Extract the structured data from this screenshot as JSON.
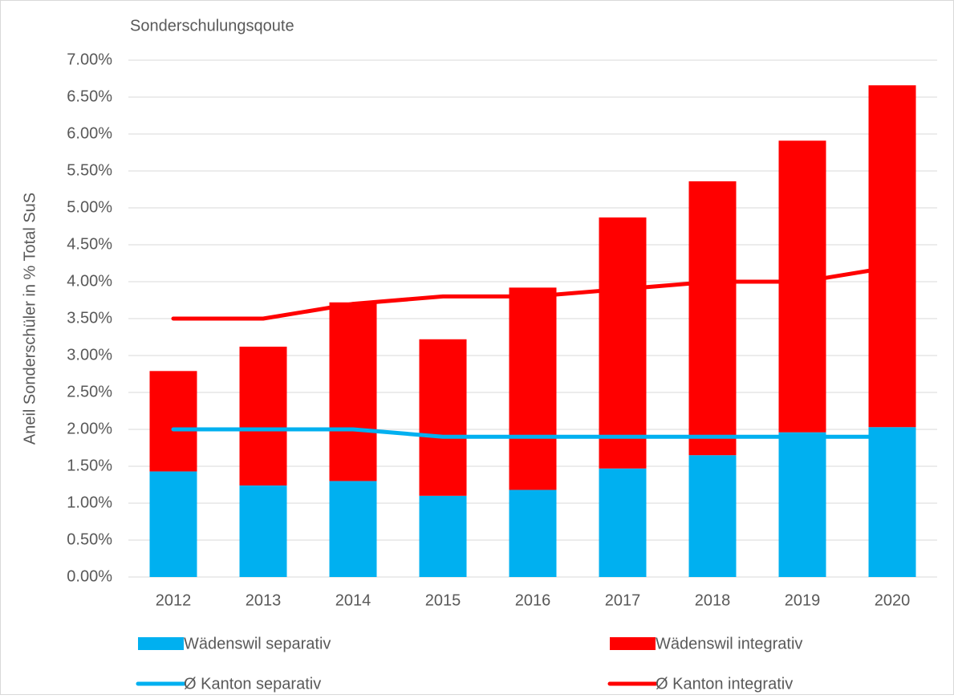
{
  "chart_data": {
    "type": "stacked-bar-line",
    "title": "Sonderschulungsqoute",
    "y_axis_label": "Aneil Sonderschüler in % Total SuS",
    "categories": [
      "2012",
      "2013",
      "2014",
      "2015",
      "2016",
      "2017",
      "2018",
      "2019",
      "2020"
    ],
    "series": [
      {
        "name": "Wädenswil separativ",
        "type": "bar",
        "color": "#00b0f0",
        "values": [
          1.43,
          1.24,
          1.3,
          1.1,
          1.18,
          1.47,
          1.65,
          1.96,
          2.03
        ]
      },
      {
        "name": "Wädenswil integrativ",
        "type": "bar",
        "color": "#ff0000",
        "values": [
          1.36,
          1.88,
          2.42,
          2.12,
          2.74,
          3.4,
          3.71,
          3.95,
          4.63
        ]
      },
      {
        "name": "Ø Kanton separativ",
        "type": "line",
        "color": "#00b0f0",
        "values": [
          2.0,
          2.0,
          2.0,
          1.9,
          1.9,
          1.9,
          1.9,
          1.9,
          1.9
        ]
      },
      {
        "name": "Ø Kanton integrativ",
        "type": "line",
        "color": "#ff0000",
        "values": [
          3.5,
          3.5,
          3.7,
          3.8,
          3.8,
          3.9,
          4.0,
          4.0,
          4.2
        ]
      }
    ],
    "ylim": [
      0,
      7
    ],
    "yticks": [
      {
        "value": 0,
        "label": "0.00%"
      },
      {
        "value": 0.5,
        "label": "0.50%"
      },
      {
        "value": 1,
        "label": "1.00%"
      },
      {
        "value": 1.5,
        "label": "1.50%"
      },
      {
        "value": 2,
        "label": "2.00%"
      },
      {
        "value": 2.5,
        "label": "2.50%"
      },
      {
        "value": 3,
        "label": "3.00%"
      },
      {
        "value": 3.5,
        "label": "3.50%"
      },
      {
        "value": 4,
        "label": "4.00%"
      },
      {
        "value": 4.5,
        "label": "4.50%"
      },
      {
        "value": 5,
        "label": "5.00%"
      },
      {
        "value": 5.5,
        "label": "5.50%"
      },
      {
        "value": 6,
        "label": "6.00%"
      },
      {
        "value": 6.5,
        "label": "6.50%"
      },
      {
        "value": 7,
        "label": "7.00%"
      }
    ],
    "grid": true,
    "legend": "bottom"
  }
}
